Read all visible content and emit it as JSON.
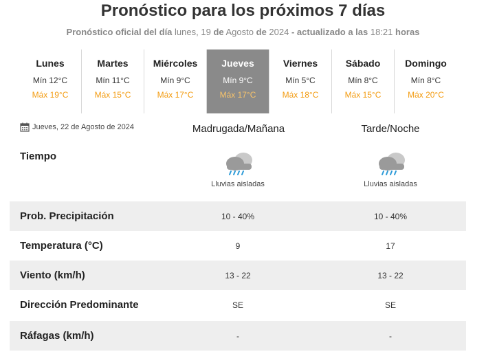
{
  "header": {
    "title": "Pronóstico para los próximos 7 días",
    "subtitle_prefix": "Pronóstico oficial del día",
    "subtitle_weekday_date": "lunes, 19",
    "subtitle_de1": "de",
    "subtitle_month": "Agosto",
    "subtitle_de2": "de",
    "subtitle_year": "2024",
    "subtitle_updated": "- actualizado a las",
    "subtitle_time": "18:21",
    "subtitle_hours": "horas"
  },
  "days": [
    {
      "name": "Lunes",
      "min": "Mín 12°C",
      "max": "Máx 19°C",
      "active": false
    },
    {
      "name": "Martes",
      "min": "Mín 11°C",
      "max": "Máx 15°C",
      "active": false
    },
    {
      "name": "Miércoles",
      "min": "Mín 9°C",
      "max": "Máx 17°C",
      "active": false
    },
    {
      "name": "Jueves",
      "min": "Mín 9°C",
      "max": "Máx 17°C",
      "active": true
    },
    {
      "name": "Viernes",
      "min": "Mín 5°C",
      "max": "Máx 18°C",
      "active": false
    },
    {
      "name": "Sábado",
      "min": "Mín 8°C",
      "max": "Máx 15°C",
      "active": false
    },
    {
      "name": "Domingo",
      "min": "Mín 8°C",
      "max": "Máx 20°C",
      "active": false
    }
  ],
  "detail": {
    "date": "Jueves, 22 de Agosto de 2024",
    "col1": "Madrugada/Mañana",
    "col2": "Tarde/Noche",
    "tiempo_label": "Tiempo",
    "weather_icon": "cloud-rain-icon",
    "weather1": "Lluvias aisladas",
    "weather2": "Lluvias aisladas",
    "rows": [
      {
        "label": "Prob. Precipitación",
        "v1": "10 - 40%",
        "v2": "10 - 40%"
      },
      {
        "label": "Temperatura (°C)",
        "v1": "9",
        "v2": "17"
      },
      {
        "label": "Viento (km/h)",
        "v1": "13 - 22",
        "v2": "13 - 22"
      },
      {
        "label": "Dirección Predominante",
        "v1": "SE",
        "v2": "SE"
      },
      {
        "label": "Ráfagas (km/h)",
        "v1": "-",
        "v2": "-"
      }
    ]
  },
  "colors": {
    "max_temp": "#f39c12",
    "active_day_bg": "#8a8a8a",
    "row_shade": "#eeeeee"
  }
}
